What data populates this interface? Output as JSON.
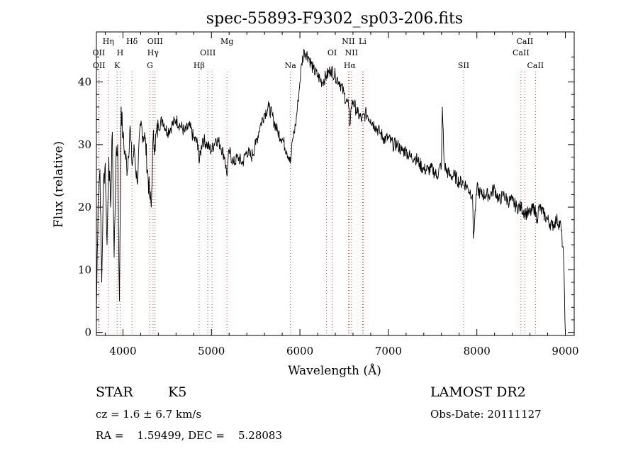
{
  "chart_data": {
    "type": "line",
    "title": "spec-55893-F9302_sp03-206.fits",
    "xlabel": "Wavelength (Å)",
    "ylabel": "Flux (relative)",
    "xlim": [
      3700,
      9100
    ],
    "ylim": [
      -0.5,
      48
    ],
    "x_ticks": [
      4000,
      5000,
      6000,
      7000,
      8000,
      9000
    ],
    "y_ticks": [
      0,
      10,
      20,
      30,
      40
    ],
    "series": [
      {
        "name": "spectrum",
        "x": [
          3700,
          3720,
          3740,
          3760,
          3780,
          3800,
          3820,
          3840,
          3860,
          3880,
          3900,
          3920,
          3940,
          3960,
          3980,
          4000,
          4020,
          4050,
          4080,
          4100,
          4130,
          4160,
          4200,
          4250,
          4300,
          4320,
          4340,
          4360,
          4400,
          4450,
          4500,
          4550,
          4600,
          4650,
          4700,
          4750,
          4800,
          4850,
          4861,
          4900,
          4950,
          5000,
          5050,
          5100,
          5150,
          5175,
          5200,
          5250,
          5300,
          5350,
          5400,
          5450,
          5500,
          5550,
          5600,
          5650,
          5700,
          5750,
          5800,
          5850,
          5880,
          5893,
          5920,
          5950,
          5980,
          6000,
          6020,
          6050,
          6100,
          6150,
          6200,
          6250,
          6300,
          6350,
          6400,
          6450,
          6500,
          6550,
          6563,
          6580,
          6600,
          6650,
          6700,
          6750,
          6800,
          6850,
          6900,
          6950,
          7000,
          7050,
          7100,
          7150,
          7200,
          7250,
          7300,
          7350,
          7400,
          7450,
          7500,
          7550,
          7600,
          7610,
          7630,
          7650,
          7700,
          7750,
          7800,
          7850,
          7900,
          7950,
          7960,
          8000,
          8050,
          8100,
          8150,
          8200,
          8250,
          8300,
          8350,
          8400,
          8450,
          8500,
          8550,
          8600,
          8650,
          8680,
          8700,
          8750,
          8800,
          8850,
          8900,
          8950,
          8980,
          9000
        ],
        "y": [
          3,
          22,
          26,
          8,
          24,
          27,
          14,
          28,
          20,
          32,
          12,
          27,
          30,
          5,
          36,
          31,
          29,
          26,
          33,
          27,
          29,
          24,
          33,
          31,
          22,
          20,
          31,
          30,
          33,
          34,
          32,
          33,
          34,
          33,
          32,
          33,
          31,
          30,
          27,
          31,
          30,
          29,
          31,
          30,
          28,
          25,
          29,
          27,
          28,
          27,
          29,
          28,
          30,
          33,
          35,
          36,
          34,
          32,
          31,
          29,
          28,
          27,
          31,
          33,
          37,
          40,
          43,
          45,
          44,
          42,
          41,
          40,
          41,
          42,
          41,
          40,
          38,
          36,
          33,
          36,
          37,
          35,
          34,
          35,
          34,
          33,
          32,
          31,
          31,
          30,
          30,
          29,
          29,
          28,
          28,
          27,
          26,
          26,
          26,
          25,
          27,
          36,
          27,
          26,
          25,
          25,
          24,
          24,
          23,
          22,
          15,
          23,
          22,
          22,
          22,
          23,
          21,
          22,
          21,
          21,
          20,
          20,
          19,
          19,
          20,
          18,
          20,
          19,
          18,
          17,
          18,
          17,
          12,
          0
        ]
      }
    ],
    "line_markers": [
      {
        "label": "OII",
        "wavelength": 3727,
        "row": 1
      },
      {
        "label": "OII",
        "wavelength": 3730,
        "row": 2
      },
      {
        "label": "Hη",
        "wavelength": 3835,
        "row": 0
      },
      {
        "label": "H",
        "wavelength": 3968,
        "row": 1
      },
      {
        "label": "K",
        "wavelength": 3934,
        "row": 2
      },
      {
        "label": "Hδ",
        "wavelength": 4102,
        "row": 0
      },
      {
        "label": "OIII",
        "wavelength": 4363,
        "row": 0
      },
      {
        "label": "Hγ",
        "wavelength": 4340,
        "row": 1
      },
      {
        "label": "G",
        "wavelength": 4305,
        "row": 2
      },
      {
        "label": "Hβ",
        "wavelength": 4861,
        "row": 2
      },
      {
        "label": "OIII",
        "wavelength": 4959,
        "row": 1
      },
      {
        "label": "OIII",
        "wavelength": 5007,
        "row": -1
      },
      {
        "label": "Mg",
        "wavelength": 5175,
        "row": 0
      },
      {
        "label": "Na",
        "wavelength": 5893,
        "row": 2
      },
      {
        "label": "OI",
        "wavelength": 6364,
        "row": 1
      },
      {
        "label": "OI",
        "wavelength": 6300,
        "row": -1
      },
      {
        "label": "NII",
        "wavelength": 6548,
        "row": 0
      },
      {
        "label": "NII",
        "wavelength": 6583,
        "row": 1
      },
      {
        "label": "Hα",
        "wavelength": 6563,
        "row": 2
      },
      {
        "label": "Li",
        "wavelength": 6708,
        "row": 0
      },
      {
        "label": "SII",
        "wavelength": 6717,
        "row": -1
      },
      {
        "label": "SII",
        "wavelength": 7850,
        "row": 2
      },
      {
        "label": "CaII",
        "wavelength": 8542,
        "row": 0
      },
      {
        "label": "CaII",
        "wavelength": 8498,
        "row": 1
      },
      {
        "label": "CaII",
        "wavelength": 8662,
        "row": 2
      }
    ]
  },
  "info": {
    "object_class": "STAR",
    "subclass": "K5",
    "survey": "LAMOST DR2",
    "cz": "cz = 1.6 ± 6.7 km/s",
    "obs_date": "Obs-Date: 20111127",
    "ra_dec": "RA =    1.59499, DEC =    5.28083"
  }
}
